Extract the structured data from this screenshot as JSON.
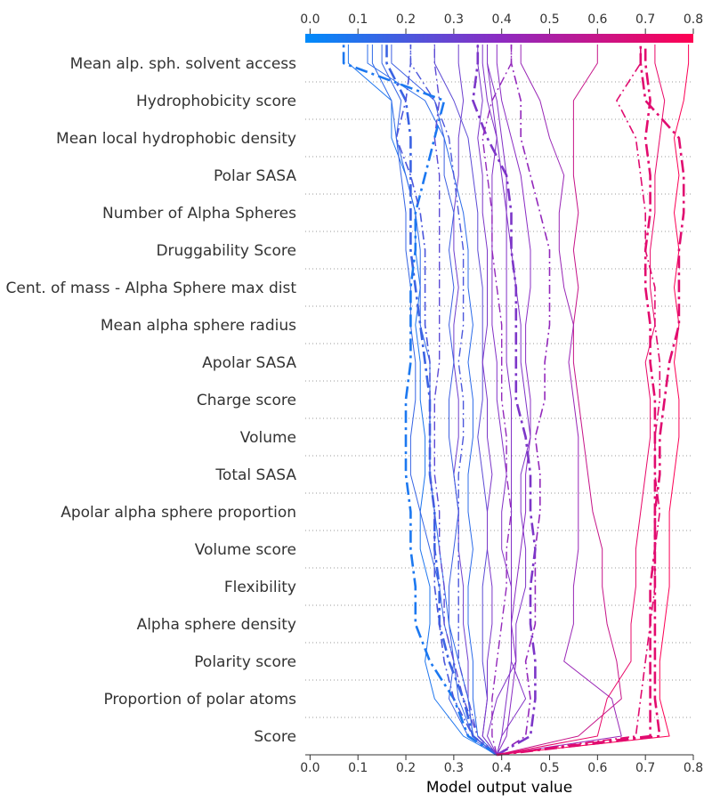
{
  "chart_data": {
    "type": "line",
    "xlabel": "Model output value",
    "xlim": [
      -0.01,
      0.8
    ],
    "ticks": [
      "0.0",
      "0.1",
      "0.2",
      "0.3",
      "0.4",
      "0.5",
      "0.6",
      "0.7",
      "0.8"
    ],
    "tick_values": [
      0.0,
      0.1,
      0.2,
      0.3,
      0.4,
      0.5,
      0.6,
      0.7,
      0.8
    ],
    "base_value": 0.39,
    "features": [
      "Mean alp. sph. solvent access",
      "Hydrophobicity score",
      "Mean local hydrophobic density",
      "Polar SASA",
      "Number of Alpha Spheres",
      "Druggability Score",
      "Cent. of mass - Alpha Sphere max dist",
      "Mean alpha sphere radius",
      "Apolar SASA",
      "Charge score",
      "Volume",
      "Total SASA",
      "Apolar alpha sphere proportion",
      "Volume score",
      "Flexibility",
      "Alpha sphere density",
      "Polarity score",
      "Proportion of polar atoms",
      "Score"
    ],
    "colorbar": {
      "from": "#008bfb",
      "mid": "#8c2bc2",
      "to": "#ff0052"
    },
    "series": [
      {
        "ls": "solid",
        "w": 1.0,
        "v": [
          0.39,
          0.34,
          0.33,
          0.33,
          0.32,
          0.32,
          0.31,
          0.31,
          0.3,
          0.31,
          0.31,
          0.3,
          0.3,
          0.31,
          0.3,
          0.3,
          0.31,
          0.31,
          0.32,
          0.31
        ]
      },
      {
        "ls": "solid",
        "w": 1.0,
        "v": [
          0.39,
          0.33,
          0.29,
          0.3,
          0.29,
          0.29,
          0.3,
          0.31,
          0.3,
          0.29,
          0.29,
          0.3,
          0.29,
          0.3,
          0.29,
          0.3,
          0.28,
          0.28,
          0.26,
          0.17
        ]
      },
      {
        "ls": "solid",
        "w": 1.0,
        "v": [
          0.39,
          0.32,
          0.26,
          0.24,
          0.25,
          0.25,
          0.23,
          0.23,
          0.24,
          0.24,
          0.23,
          0.23,
          0.22,
          0.23,
          0.22,
          0.22,
          0.2,
          0.17,
          0.17,
          0.08
        ]
      },
      {
        "ls": "solid",
        "w": 1.0,
        "v": [
          0.39,
          0.35,
          0.34,
          0.34,
          0.33,
          0.33,
          0.34,
          0.33,
          0.33,
          0.34,
          0.34,
          0.33,
          0.34,
          0.33,
          0.33,
          0.32,
          0.3,
          0.28,
          0.24,
          0.12
        ]
      },
      {
        "ls": "solid",
        "w": 1.0,
        "v": [
          0.39,
          0.34,
          0.31,
          0.3,
          0.28,
          0.27,
          0.25,
          0.23,
          0.21,
          0.21,
          0.22,
          0.22,
          0.21,
          0.21,
          0.2,
          0.2,
          0.19,
          0.18,
          0.19,
          0.15
        ]
      },
      {
        "ls": "solid",
        "w": 1.0,
        "v": [
          0.39,
          0.36,
          0.37,
          0.36,
          0.36,
          0.36,
          0.37,
          0.37,
          0.36,
          0.35,
          0.36,
          0.36,
          0.36,
          0.36,
          0.35,
          0.35,
          0.34,
          0.33,
          0.3,
          0.26
        ]
      },
      {
        "ls": "solid",
        "w": 1.0,
        "v": [
          0.39,
          0.34,
          0.33,
          0.31,
          0.29,
          0.28,
          0.27,
          0.26,
          0.25,
          0.25,
          0.25,
          0.25,
          0.23,
          0.23,
          0.23,
          0.22,
          0.2,
          0.18,
          0.17,
          0.13
        ]
      },
      {
        "ls": "dashdot",
        "w": 1.4,
        "v": [
          0.39,
          0.35,
          0.33,
          0.31,
          0.31,
          0.31,
          0.31,
          0.31,
          0.31,
          0.32,
          0.32,
          0.31,
          0.32,
          0.32,
          0.32,
          0.31,
          0.3,
          0.29,
          0.26,
          0.21
        ]
      },
      {
        "ls": "dashdot",
        "w": 1.4,
        "v": [
          0.39,
          0.35,
          0.32,
          0.3,
          0.28,
          0.28,
          0.27,
          0.27,
          0.26,
          0.26,
          0.26,
          0.27,
          0.27,
          0.27,
          0.27,
          0.27,
          0.27,
          0.26,
          0.27,
          0.26
        ]
      },
      {
        "ls": "dashdot",
        "w": 2.6,
        "v": [
          0.39,
          0.34,
          0.32,
          0.29,
          0.27,
          0.27,
          0.26,
          0.26,
          0.25,
          0.25,
          0.25,
          0.24,
          0.23,
          0.22,
          0.21,
          0.21,
          0.21,
          0.21,
          0.2,
          0.16
        ]
      },
      {
        "ls": "dashdot",
        "w": 2.6,
        "v": [
          0.39,
          0.33,
          0.3,
          0.25,
          0.22,
          0.22,
          0.21,
          0.21,
          0.2,
          0.2,
          0.2,
          0.21,
          0.21,
          0.21,
          0.22,
          0.22,
          0.24,
          0.26,
          0.28,
          0.07
        ]
      },
      {
        "ls": "dashdot",
        "w": 1.6,
        "v": [
          0.39,
          0.34,
          0.3,
          0.28,
          0.27,
          0.26,
          0.26,
          0.26,
          0.25,
          0.25,
          0.25,
          0.25,
          0.24,
          0.24,
          0.24,
          0.23,
          0.21,
          0.18,
          0.2,
          0.21
        ]
      },
      {
        "ls": "solid",
        "w": 1.0,
        "v": [
          0.39,
          0.37,
          0.39,
          0.43,
          0.43,
          0.45,
          0.45,
          0.44,
          0.44,
          0.46,
          0.45,
          0.44,
          0.44,
          0.43,
          0.42,
          0.41,
          0.4,
          0.39,
          0.37,
          0.36
        ]
      },
      {
        "ls": "solid",
        "w": 1.0,
        "v": [
          0.39,
          0.4,
          0.45,
          0.42,
          0.42,
          0.42,
          0.4,
          0.4,
          0.41,
          0.4,
          0.39,
          0.39,
          0.38,
          0.38,
          0.38,
          0.38,
          0.38,
          0.39,
          0.38,
          0.37
        ]
      },
      {
        "ls": "solid",
        "w": 1.0,
        "v": [
          0.39,
          0.36,
          0.37,
          0.37,
          0.38,
          0.38,
          0.37,
          0.37,
          0.38,
          0.37,
          0.37,
          0.36,
          0.37,
          0.37,
          0.37,
          0.36,
          0.36,
          0.35,
          0.36,
          0.35
        ]
      },
      {
        "ls": "solid",
        "w": 1.0,
        "v": [
          0.39,
          0.41,
          0.42,
          0.43,
          0.42,
          0.43,
          0.44,
          0.45,
          0.45,
          0.46,
          0.46,
          0.45,
          0.45,
          0.46,
          0.46,
          0.45,
          0.44,
          0.42,
          0.4,
          0.39
        ]
      },
      {
        "ls": "dashdot",
        "w": 1.6,
        "v": [
          0.39,
          0.45,
          0.46,
          0.45,
          0.47,
          0.47,
          0.47,
          0.48,
          0.48,
          0.47,
          0.49,
          0.49,
          0.5,
          0.5,
          0.5,
          0.48,
          0.46,
          0.44,
          0.44,
          0.42
        ]
      },
      {
        "ls": "dashdot",
        "w": 2.6,
        "v": [
          0.39,
          0.46,
          0.47,
          0.47,
          0.46,
          0.46,
          0.47,
          0.46,
          0.46,
          0.45,
          0.43,
          0.43,
          0.43,
          0.43,
          0.42,
          0.42,
          0.41,
          0.37,
          0.34,
          0.35
        ]
      },
      {
        "ls": "dashdot",
        "w": 1.4,
        "v": [
          0.39,
          0.38,
          0.38,
          0.39,
          0.4,
          0.41,
          0.41,
          0.42,
          0.41,
          0.41,
          0.4,
          0.4,
          0.4,
          0.39,
          0.38,
          0.38,
          0.37,
          0.36,
          0.38,
          0.42
        ]
      },
      {
        "ls": "solid",
        "w": 1.0,
        "v": [
          0.39,
          0.4,
          0.41,
          0.42,
          0.42,
          0.42,
          0.42,
          0.42,
          0.42,
          0.42,
          0.42,
          0.41,
          0.41,
          0.41,
          0.41,
          0.41,
          0.41,
          0.4,
          0.39,
          0.37
        ]
      },
      {
        "ls": "solid",
        "w": 1.0,
        "v": [
          0.39,
          0.56,
          0.65,
          0.64,
          0.62,
          0.61,
          0.61,
          0.59,
          0.58,
          0.57,
          0.56,
          0.55,
          0.55,
          0.56,
          0.55,
          0.56,
          0.55,
          0.55,
          0.55,
          0.6
        ]
      },
      {
        "ls": "solid",
        "w": 1.0,
        "v": [
          0.39,
          0.65,
          0.63,
          0.53,
          0.55,
          0.55,
          0.56,
          0.56,
          0.56,
          0.56,
          0.55,
          0.54,
          0.55,
          0.53,
          0.52,
          0.52,
          0.53,
          0.5,
          0.48,
          0.44
        ]
      },
      {
        "ls": "solid",
        "w": 1.0,
        "v": [
          0.39,
          0.6,
          0.62,
          0.67,
          0.67,
          0.68,
          0.68,
          0.69,
          0.7,
          0.71,
          0.71,
          0.7,
          0.72,
          0.71,
          0.71,
          0.72,
          0.72,
          0.73,
          0.74,
          0.72
        ]
      },
      {
        "ls": "solid",
        "w": 1.0,
        "v": [
          0.39,
          0.75,
          0.73,
          0.73,
          0.74,
          0.75,
          0.75,
          0.75,
          0.76,
          0.77,
          0.77,
          0.76,
          0.77,
          0.76,
          0.77,
          0.76,
          0.77,
          0.76,
          0.78,
          0.79
        ]
      },
      {
        "ls": "dashdot",
        "w": 2.6,
        "v": [
          0.39,
          0.73,
          0.72,
          0.72,
          0.72,
          0.72,
          0.72,
          0.72,
          0.72,
          0.72,
          0.72,
          0.71,
          0.71,
          0.7,
          0.7,
          0.71,
          0.71,
          0.7,
          0.71,
          0.7
        ]
      },
      {
        "ls": "dashdot",
        "w": 2.6,
        "v": [
          0.39,
          0.71,
          0.71,
          0.71,
          0.71,
          0.71,
          0.72,
          0.72,
          0.73,
          0.73,
          0.74,
          0.75,
          0.77,
          0.77,
          0.77,
          0.78,
          0.78,
          0.77,
          0.7,
          0.69
        ]
      },
      {
        "ls": "dashdot",
        "w": 1.6,
        "v": [
          0.39,
          0.68,
          0.69,
          0.7,
          0.71,
          0.72,
          0.72,
          0.73,
          0.72,
          0.72,
          0.73,
          0.73,
          0.72,
          0.72,
          0.7,
          0.7,
          0.69,
          0.68,
          0.64,
          0.69
        ]
      }
    ]
  }
}
